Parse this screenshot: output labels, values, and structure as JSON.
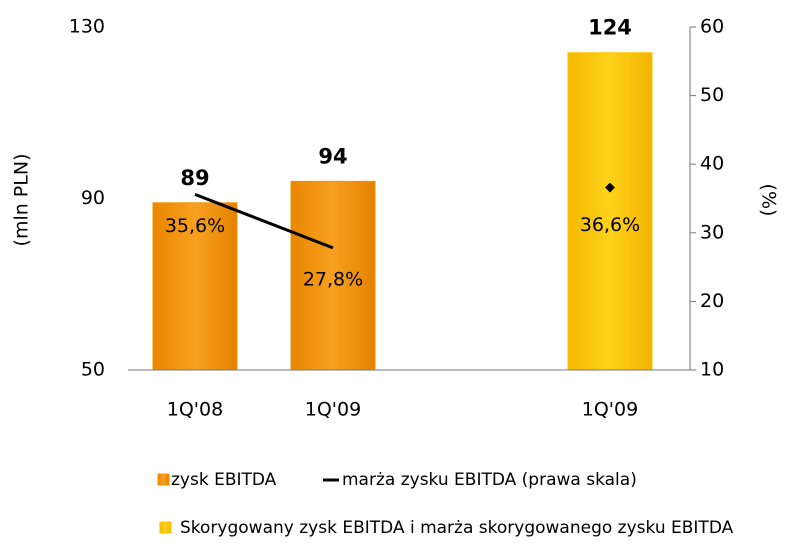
{
  "chart_data": {
    "type": "bar",
    "y_label": "(mln PLN)",
    "y2_label": "(%)",
    "categories": [
      "1Q'08",
      "1Q'09",
      null,
      "1Q'09"
    ],
    "ylim": [
      50,
      130
    ],
    "yticks": [
      50,
      90,
      130
    ],
    "y2lim": [
      10,
      60
    ],
    "y2ticks": [
      10,
      20,
      30,
      40,
      50,
      60
    ],
    "series": [
      {
        "name": "zysk EBITDA",
        "type": "bar",
        "color": "#f39200",
        "values": [
          89,
          94,
          null,
          null
        ]
      },
      {
        "name": "marża zysku EBITDA (prawa skala)",
        "type": "line",
        "axis": "y2",
        "color": "#000000",
        "values": [
          35.6,
          27.8,
          null,
          null
        ],
        "value_labels": [
          "35,6%",
          "27,8%",
          null,
          null
        ]
      },
      {
        "name": "Skorygowany zysk EBITDA i marża skorygowanego zysku EBITDA",
        "type": "bar",
        "color": "#ffc600",
        "values": [
          null,
          null,
          null,
          124
        ]
      },
      {
        "type": "point",
        "axis": "y2",
        "color": "#000000",
        "values": [
          null,
          null,
          null,
          36.6
        ],
        "value_labels": [
          null,
          null,
          null,
          "36,6%"
        ]
      }
    ]
  }
}
